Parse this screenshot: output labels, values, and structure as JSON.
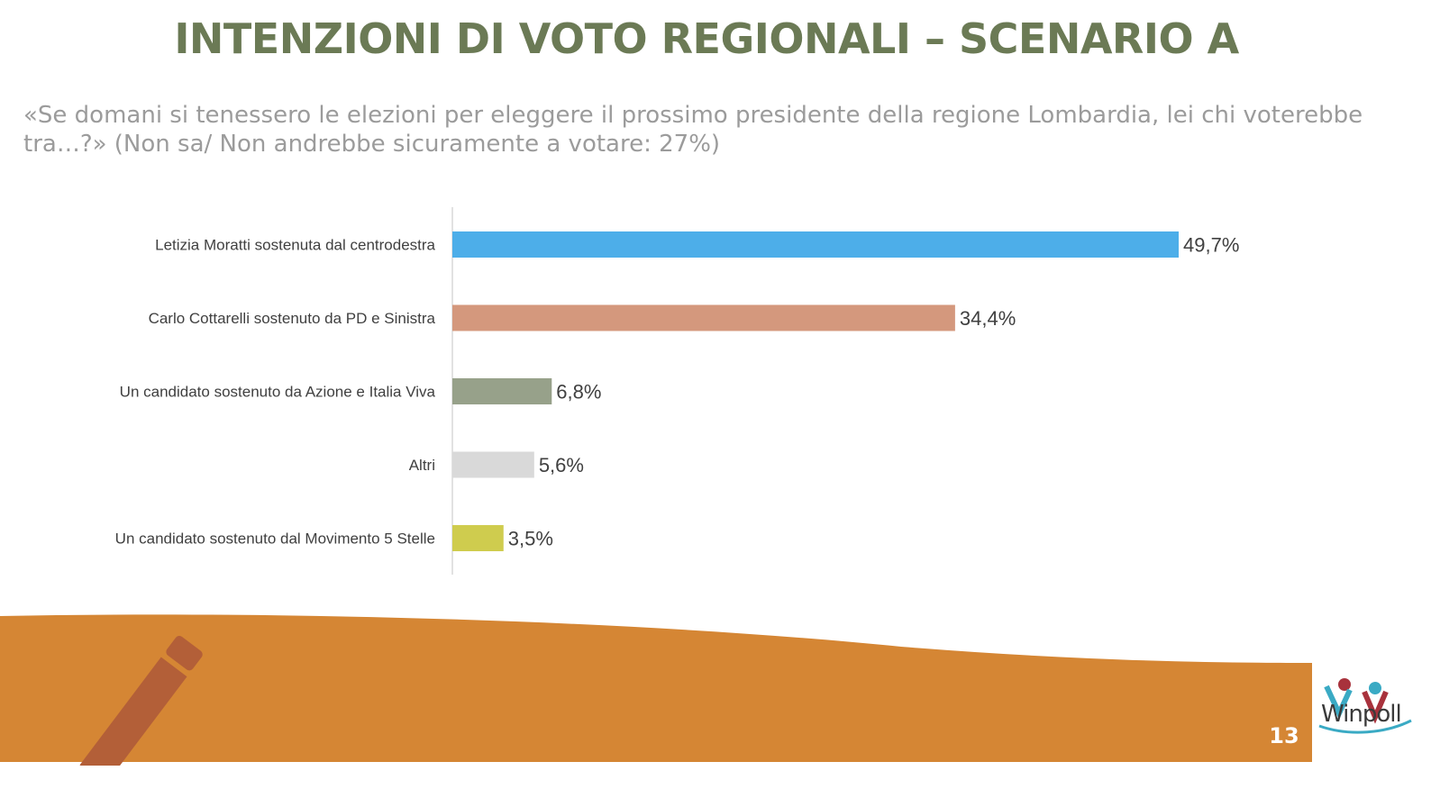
{
  "slide": {
    "title": "INTENZIONI DI VOTO REGIONALI – SCENARIO A",
    "subtitle": "«Se domani si tenessero le elezioni per eleggere il prossimo presidente della regione Lombardia, lei chi voterebbe tra…?» (Non sa/ Non andrebbe sicuramente a votare: 27%)",
    "page_number": "13",
    "logo_text": "Winpoll"
  },
  "chart_data": {
    "type": "bar",
    "orientation": "horizontal",
    "categories": [
      "Letizia Moratti sostenuta dal centrodestra",
      "Carlo Cottarelli sostenuto da PD e Sinistra",
      "Un candidato sostenuto da Azione e Italia Viva",
      "Altri",
      "Un candidato sostenuto dal Movimento 5 Stelle"
    ],
    "values": [
      49.7,
      34.4,
      6.8,
      5.6,
      3.5
    ],
    "labels": [
      "49,7%",
      "34,4%",
      "6,8%",
      "5,6%",
      "3,5%"
    ],
    "colors": [
      "#4daee9",
      "#d4987d",
      "#97a18a",
      "#d9d9d9",
      "#cfcc4e"
    ],
    "title": "",
    "xlabel": "",
    "ylabel": "",
    "xlim": [
      0,
      55
    ],
    "grid": false
  },
  "colors": {
    "title": "#6b7a55",
    "subtitle": "#9b9b9b",
    "footer_band": "#d58634",
    "pencil": "#b35f38"
  },
  "icons": {
    "pencil": "pencil-icon",
    "logo": "winpoll-logo"
  }
}
